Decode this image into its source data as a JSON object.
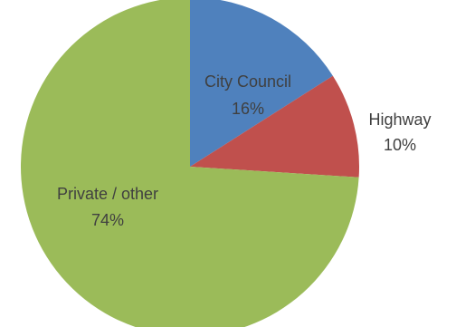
{
  "chart_data": {
    "type": "pie",
    "slices": [
      {
        "label": "City Council",
        "value": 16,
        "value_label": "16%",
        "color": "#4F81BD"
      },
      {
        "label": "Highway",
        "value": 10,
        "value_label": "10%",
        "color": "#C0504D"
      },
      {
        "label": "Private / other",
        "value": 74,
        "value_label": "74%",
        "color": "#9BBB59"
      }
    ],
    "start_angle": "12 o'clock",
    "direction": "clockwise",
    "legend": "none"
  }
}
